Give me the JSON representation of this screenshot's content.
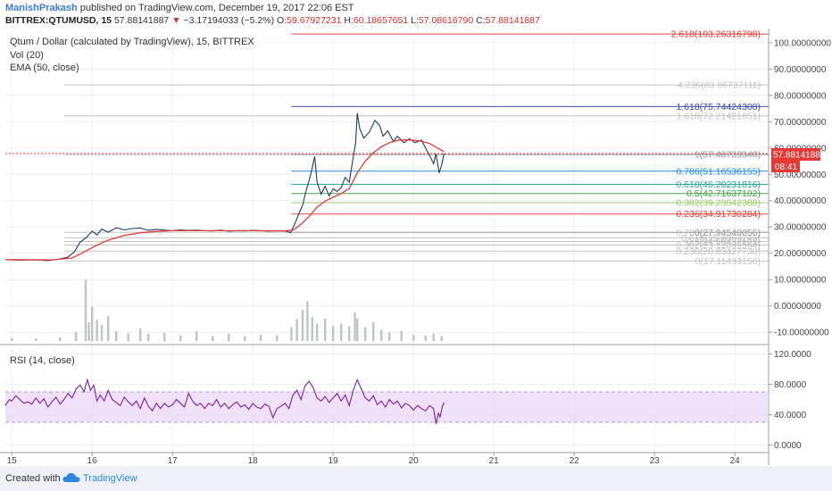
{
  "header": {
    "author": "ManishPrakash",
    "published": "published on TradingView.com, December 19, 2017 22:06 EST",
    "symbol": "BITTREX:QTUMUSD, 15",
    "last": "57.88141887",
    "change": "−3.17194033 (−5.2%)",
    "open_label": "O:",
    "open": "59.67927231",
    "high_label": "H:",
    "high": "60.18657651",
    "low_label": "L:",
    "low": "57.08616790",
    "close_label": "C:",
    "close": "57.88141887"
  },
  "legend": {
    "title": "Qtum / Dollar (calculated by TradingView), 15, BITTREX",
    "vol": "Vol (20)",
    "ema": "EMA (50, close)",
    "rsi": "RSI (14, close)"
  },
  "price_badge": {
    "price": "57.88141887",
    "countdown": "08:41"
  },
  "footer": {
    "created": "Created with",
    "brand": "TradingView"
  },
  "colors": {
    "red": "#e53935",
    "ema": "#e53935",
    "price_line": "#0a2a6b",
    "rsi": "#7b1fa2",
    "rsi_band": "#e8d4f5",
    "fib_blue": "#3949ab"
  },
  "chart_data": {
    "type": "line",
    "price_axis": {
      "ylim": [
        -14,
        104
      ],
      "ticks": [
        {
          "v": 100,
          "label": "100.00000000"
        },
        {
          "v": 90,
          "label": "90.00000000"
        },
        {
          "v": 80,
          "label": "80.00000000"
        },
        {
          "v": 70,
          "label": "70.00000000"
        },
        {
          "v": 60,
          "label": "60.00000000"
        },
        {
          "v": 50,
          "label": "50.00000000"
        },
        {
          "v": 40,
          "label": "40.00000000"
        },
        {
          "v": 30,
          "label": "30.00000000"
        },
        {
          "v": 20,
          "label": "20.00000000"
        },
        {
          "v": 10,
          "label": "10.00000000"
        },
        {
          "v": 0,
          "label": "0.00000000"
        },
        {
          "v": -10,
          "label": "-10.00000000"
        }
      ]
    },
    "rsi_axis": {
      "ylim": [
        -10,
        130
      ],
      "ticks": [
        {
          "v": 120,
          "label": "120.0000"
        },
        {
          "v": 80,
          "label": "80.0000"
        },
        {
          "v": 40,
          "label": "40.0000"
        },
        {
          "v": 0,
          "label": "0.0000"
        }
      ],
      "band": [
        30,
        70
      ]
    },
    "x_axis": {
      "xlim": [
        14.92,
        24.42
      ],
      "ticks": [
        {
          "v": 15,
          "label": "15"
        },
        {
          "v": 16,
          "label": "16"
        },
        {
          "v": 17,
          "label": "17"
        },
        {
          "v": 18,
          "label": "18"
        },
        {
          "v": 19,
          "label": "19"
        },
        {
          "v": 20,
          "label": "20"
        },
        {
          "v": 21,
          "label": "21"
        },
        {
          "v": 22,
          "label": "22"
        },
        {
          "v": 23,
          "label": "23"
        },
        {
          "v": 24,
          "label": "24"
        }
      ]
    },
    "fib_sets": [
      {
        "x_start": 15.65,
        "color": "#b0b0b0",
        "levels": [
          {
            "label": "4.236(83.96737111)",
            "value": 83.97
          },
          {
            "label": "1.618(72.21421851)",
            "value": 72.21
          },
          {
            "label": "1(57.48733340)",
            "value": 57.49
          },
          {
            "label": "0.786(27.94540056)",
            "value": 27.95
          },
          {
            "label": "0.618(25.8803245)",
            "value": 25.88
          },
          {
            "label": "0.5(24.50437102)",
            "value": 24.5
          },
          {
            "label": "0.382(23.12839564)",
            "value": 23.13
          },
          {
            "label": "0.236(20.83427730)",
            "value": 20.83
          },
          {
            "label": "0(17.11433156)",
            "value": 17.11
          }
        ]
      },
      {
        "x_start": 18.48,
        "color": null,
        "levels": [
          {
            "label": "2.618(103.26316798)",
            "value": 103.26,
            "color": "#e53935"
          },
          {
            "label": "1.618(75.74424308)",
            "value": 75.74,
            "color": "#3949ab"
          },
          {
            "label": "1(57.48733340)",
            "value": 57.49,
            "color": "#9e9e9e"
          },
          {
            "label": "0.786(51.16536155)",
            "value": 51.17,
            "color": "#1e88e5"
          },
          {
            "label": "0.618(46.20231816)",
            "value": 46.2,
            "color": "#26a69a"
          },
          {
            "label": "0.5(42.71637102)",
            "value": 42.72,
            "color": "#43a047"
          },
          {
            "label": "0.382(39.23042388)",
            "value": 39.23,
            "color": "#9ccc65"
          },
          {
            "label": "0.236(34.91730284)",
            "value": 34.92,
            "color": "#e53935"
          },
          {
            "label": "0(27.94540056)",
            "value": 27.95,
            "color": "#9e9e9e"
          }
        ]
      }
    ],
    "price_series": [
      [
        14.92,
        17.6
      ],
      [
        15.1,
        17.4
      ],
      [
        15.3,
        17.5
      ],
      [
        15.45,
        17.2
      ],
      [
        15.6,
        17.8
      ],
      [
        15.7,
        18.6
      ],
      [
        15.78,
        20.6
      ],
      [
        15.85,
        24.2
      ],
      [
        15.92,
        25.8
      ],
      [
        16.0,
        28.4
      ],
      [
        16.06,
        27.0
      ],
      [
        16.12,
        29.2
      ],
      [
        16.2,
        28.0
      ],
      [
        16.3,
        29.7
      ],
      [
        16.4,
        28.9
      ],
      [
        16.5,
        29.4
      ],
      [
        16.6,
        29.6
      ],
      [
        16.7,
        28.7
      ],
      [
        16.8,
        29.1
      ],
      [
        16.9,
        28.8
      ],
      [
        17.0,
        28.6
      ],
      [
        17.1,
        28.9
      ],
      [
        17.2,
        28.7
      ],
      [
        17.3,
        28.8
      ],
      [
        17.4,
        28.6
      ],
      [
        17.5,
        28.5
      ],
      [
        17.6,
        28.8
      ],
      [
        17.7,
        28.4
      ],
      [
        17.8,
        28.6
      ],
      [
        17.9,
        28.5
      ],
      [
        18.0,
        28.7
      ],
      [
        18.1,
        28.6
      ],
      [
        18.2,
        28.4
      ],
      [
        18.3,
        28.6
      ],
      [
        18.4,
        28.5
      ],
      [
        18.47,
        27.8
      ],
      [
        18.52,
        31.0
      ],
      [
        18.58,
        35.5
      ],
      [
        18.62,
        38.2
      ],
      [
        18.66,
        43.5
      ],
      [
        18.7,
        47.5
      ],
      [
        18.74,
        52.5
      ],
      [
        18.77,
        56.8
      ],
      [
        18.8,
        47.0
      ],
      [
        18.85,
        42.5
      ],
      [
        18.9,
        45.5
      ],
      [
        18.95,
        41.8
      ],
      [
        19.0,
        44.5
      ],
      [
        19.05,
        43.5
      ],
      [
        19.1,
        45.0
      ],
      [
        19.15,
        48.8
      ],
      [
        19.2,
        47.0
      ],
      [
        19.25,
        56.5
      ],
      [
        19.28,
        62.0
      ],
      [
        19.3,
        73.2
      ],
      [
        19.33,
        67.5
      ],
      [
        19.38,
        63.8
      ],
      [
        19.45,
        66.0
      ],
      [
        19.52,
        70.5
      ],
      [
        19.58,
        68.5
      ],
      [
        19.62,
        64.5
      ],
      [
        19.68,
        66.5
      ],
      [
        19.75,
        62.5
      ],
      [
        19.8,
        64.5
      ],
      [
        19.88,
        62.0
      ],
      [
        19.95,
        63.5
      ],
      [
        20.02,
        62.0
      ],
      [
        20.1,
        63.0
      ],
      [
        20.15,
        60.0
      ],
      [
        20.2,
        57.2
      ],
      [
        20.25,
        54.0
      ],
      [
        20.28,
        57.8
      ],
      [
        20.32,
        50.5
      ],
      [
        20.35,
        53.5
      ],
      [
        20.38,
        57.88
      ]
    ],
    "ema_series": [
      [
        14.92,
        17.6
      ],
      [
        15.5,
        17.5
      ],
      [
        15.75,
        18.2
      ],
      [
        15.9,
        20.5
      ],
      [
        16.05,
        23.0
      ],
      [
        16.2,
        25.0
      ],
      [
        16.4,
        26.8
      ],
      [
        16.6,
        27.8
      ],
      [
        16.8,
        28.3
      ],
      [
        17.0,
        28.6
      ],
      [
        17.5,
        28.6
      ],
      [
        18.0,
        28.6
      ],
      [
        18.4,
        28.5
      ],
      [
        18.5,
        28.8
      ],
      [
        18.6,
        31.0
      ],
      [
        18.7,
        34.0
      ],
      [
        18.8,
        37.5
      ],
      [
        18.9,
        39.8
      ],
      [
        19.0,
        41.3
      ],
      [
        19.1,
        42.7
      ],
      [
        19.2,
        44.6
      ],
      [
        19.3,
        50.5
      ],
      [
        19.4,
        55.0
      ],
      [
        19.5,
        58.2
      ],
      [
        19.6,
        60.5
      ],
      [
        19.7,
        62.0
      ],
      [
        19.8,
        62.9
      ],
      [
        19.9,
        63.1
      ],
      [
        20.0,
        62.9
      ],
      [
        20.1,
        62.6
      ],
      [
        20.2,
        61.7
      ],
      [
        20.3,
        60.0
      ],
      [
        20.38,
        58.6
      ]
    ],
    "volume_series": [
      [
        15.0,
        0.5
      ],
      [
        15.3,
        0.4
      ],
      [
        15.6,
        0.6
      ],
      [
        15.8,
        1.5
      ],
      [
        15.92,
        9.8
      ],
      [
        15.96,
        3.0
      ],
      [
        16.0,
        5.5
      ],
      [
        16.06,
        3.4
      ],
      [
        16.12,
        2.6
      ],
      [
        16.2,
        4.0
      ],
      [
        16.3,
        1.6
      ],
      [
        16.45,
        1.2
      ],
      [
        16.6,
        2.0
      ],
      [
        16.7,
        1.2
      ],
      [
        16.9,
        1.3
      ],
      [
        17.1,
        0.9
      ],
      [
        17.3,
        1.6
      ],
      [
        17.5,
        0.8
      ],
      [
        17.7,
        1.2
      ],
      [
        17.9,
        0.8
      ],
      [
        18.1,
        1.0
      ],
      [
        18.3,
        0.9
      ],
      [
        18.48,
        2.2
      ],
      [
        18.55,
        3.5
      ],
      [
        18.62,
        5.0
      ],
      [
        18.68,
        6.4
      ],
      [
        18.74,
        3.8
      ],
      [
        18.8,
        2.8
      ],
      [
        18.9,
        3.6
      ],
      [
        19.0,
        2.4
      ],
      [
        19.1,
        2.8
      ],
      [
        19.2,
        2.4
      ],
      [
        19.27,
        4.6
      ],
      [
        19.3,
        3.6
      ],
      [
        19.4,
        2.2
      ],
      [
        19.5,
        3.0
      ],
      [
        19.6,
        1.8
      ],
      [
        19.7,
        1.4
      ],
      [
        19.85,
        1.6
      ],
      [
        20.0,
        1.0
      ],
      [
        20.15,
        0.9
      ],
      [
        20.25,
        1.2
      ],
      [
        20.35,
        0.8
      ]
    ],
    "rsi_series": [
      [
        14.92,
        52
      ],
      [
        14.97,
        60
      ],
      [
        15.0,
        58
      ],
      [
        15.05,
        65
      ],
      [
        15.1,
        60
      ],
      [
        15.15,
        55
      ],
      [
        15.2,
        57
      ],
      [
        15.25,
        54
      ],
      [
        15.3,
        62
      ],
      [
        15.35,
        55
      ],
      [
        15.4,
        61
      ],
      [
        15.45,
        50
      ],
      [
        15.5,
        57
      ],
      [
        15.55,
        63
      ],
      [
        15.6,
        54
      ],
      [
        15.65,
        60
      ],
      [
        15.7,
        68
      ],
      [
        15.75,
        62
      ],
      [
        15.8,
        74
      ],
      [
        15.85,
        79
      ],
      [
        15.9,
        70
      ],
      [
        15.94,
        86
      ],
      [
        15.98,
        72
      ],
      [
        16.02,
        79
      ],
      [
        16.06,
        58
      ],
      [
        16.1,
        66
      ],
      [
        16.15,
        58
      ],
      [
        16.2,
        72
      ],
      [
        16.25,
        60
      ],
      [
        16.3,
        56
      ],
      [
        16.35,
        52
      ],
      [
        16.4,
        63
      ],
      [
        16.45,
        57
      ],
      [
        16.5,
        52
      ],
      [
        16.55,
        58
      ],
      [
        16.6,
        48
      ],
      [
        16.65,
        62
      ],
      [
        16.7,
        51
      ],
      [
        16.75,
        45
      ],
      [
        16.8,
        55
      ],
      [
        16.85,
        48
      ],
      [
        16.9,
        55
      ],
      [
        16.95,
        50
      ],
      [
        17.0,
        53
      ],
      [
        17.05,
        60
      ],
      [
        17.1,
        55
      ],
      [
        17.15,
        50
      ],
      [
        17.2,
        68
      ],
      [
        17.25,
        58
      ],
      [
        17.3,
        52
      ],
      [
        17.35,
        55
      ],
      [
        17.4,
        48
      ],
      [
        17.45,
        55
      ],
      [
        17.5,
        52
      ],
      [
        17.55,
        60
      ],
      [
        17.6,
        50
      ],
      [
        17.65,
        55
      ],
      [
        17.7,
        48
      ],
      [
        17.75,
        53
      ],
      [
        17.8,
        57
      ],
      [
        17.85,
        50
      ],
      [
        17.9,
        53
      ],
      [
        17.95,
        47
      ],
      [
        18.0,
        55
      ],
      [
        18.05,
        50
      ],
      [
        18.1,
        48
      ],
      [
        18.15,
        54
      ],
      [
        18.2,
        51
      ],
      [
        18.25,
        36
      ],
      [
        18.3,
        48
      ],
      [
        18.35,
        51
      ],
      [
        18.4,
        55
      ],
      [
        18.45,
        48
      ],
      [
        18.5,
        66
      ],
      [
        18.55,
        72
      ],
      [
        18.6,
        60
      ],
      [
        18.65,
        78
      ],
      [
        18.7,
        84
      ],
      [
        18.75,
        76
      ],
      [
        18.8,
        62
      ],
      [
        18.85,
        58
      ],
      [
        18.9,
        64
      ],
      [
        18.95,
        56
      ],
      [
        19.0,
        62
      ],
      [
        19.05,
        68
      ],
      [
        19.1,
        58
      ],
      [
        19.15,
        66
      ],
      [
        19.2,
        52
      ],
      [
        19.25,
        72
      ],
      [
        19.3,
        86
      ],
      [
        19.35,
        74
      ],
      [
        19.4,
        62
      ],
      [
        19.45,
        58
      ],
      [
        19.5,
        65
      ],
      [
        19.55,
        53
      ],
      [
        19.6,
        58
      ],
      [
        19.65,
        50
      ],
      [
        19.7,
        60
      ],
      [
        19.75,
        54
      ],
      [
        19.8,
        58
      ],
      [
        19.85,
        49
      ],
      [
        19.9,
        55
      ],
      [
        19.95,
        52
      ],
      [
        20.0,
        46
      ],
      [
        20.05,
        52
      ],
      [
        20.1,
        48
      ],
      [
        20.15,
        45
      ],
      [
        20.2,
        52
      ],
      [
        20.25,
        48
      ],
      [
        20.28,
        28
      ],
      [
        20.31,
        42
      ],
      [
        20.33,
        37
      ],
      [
        20.36,
        51
      ],
      [
        20.38,
        56
      ]
    ]
  }
}
